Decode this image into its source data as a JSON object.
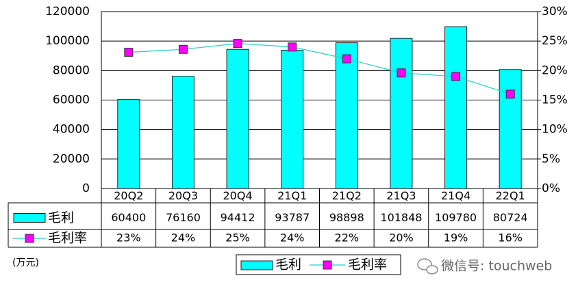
{
  "chart_data": {
    "type": "bar",
    "categories": [
      "20Q2",
      "20Q3",
      "20Q4",
      "21Q1",
      "21Q2",
      "21Q3",
      "21Q4",
      "22Q1"
    ],
    "series": [
      {
        "name": "毛利",
        "type": "bar",
        "color": "#00ffff",
        "values": [
          60400,
          76160,
          94412,
          93787,
          98898,
          101848,
          109780,
          80724
        ]
      },
      {
        "name": "毛利率",
        "type": "line",
        "axis": "y2",
        "color": "#33cccc",
        "marker_color": "#ff00ff",
        "values": [
          23.1,
          23.6,
          24.6,
          24.0,
          22.0,
          19.6,
          19.0,
          16.0
        ],
        "value_labels": [
          "23%",
          "24%",
          "25%",
          "24%",
          "22%",
          "20%",
          "19%",
          "16%"
        ]
      }
    ],
    "ylim": [
      0,
      120000
    ],
    "yticks": [
      0,
      20000,
      40000,
      60000,
      80000,
      100000,
      120000
    ],
    "y2lim": [
      0,
      30
    ],
    "y2ticks": [
      {
        "value": 0,
        "label": "0%"
      },
      {
        "value": 5,
        "label": "5%"
      },
      {
        "value": 10,
        "label": "10%"
      },
      {
        "value": 15,
        "label": "15%"
      },
      {
        "value": 20,
        "label": "20%"
      },
      {
        "value": 25,
        "label": "25%"
      },
      {
        "value": 30,
        "label": "30%"
      }
    ],
    "grid": true,
    "unit_label": "(万元)",
    "watermark": "微信号: touchweb"
  }
}
